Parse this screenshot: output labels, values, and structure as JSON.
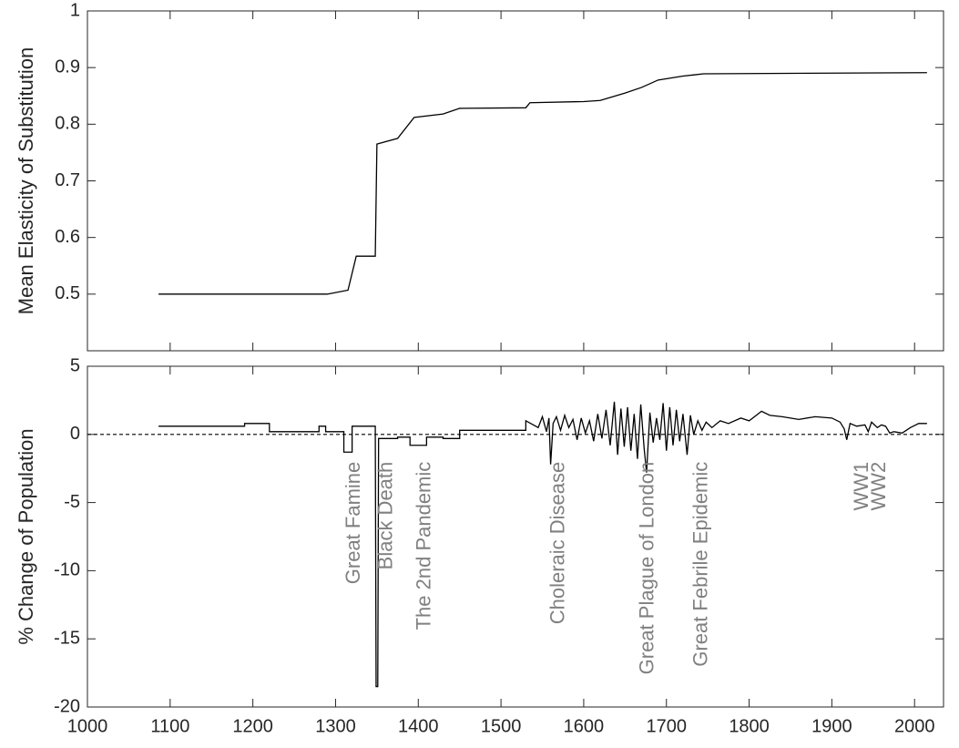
{
  "chart_data": [
    {
      "type": "line",
      "ylabel": "Mean Elasticity of Substitution",
      "xlim": [
        1000,
        2035
      ],
      "ylim": [
        0.4,
        1
      ],
      "xticks": [
        1000,
        1100,
        1200,
        1300,
        1400,
        1500,
        1600,
        1700,
        1800,
        1900,
        2000
      ],
      "xtick_labels": false,
      "yticks": [
        0.5,
        0.6,
        0.7,
        0.8,
        0.9,
        1
      ],
      "series": [
        {
          "color": "#000000",
          "x": [
            1086,
            1290,
            1315,
            1325,
            1348,
            1350,
            1375,
            1395,
            1430,
            1450,
            1530,
            1535,
            1600,
            1620,
            1650,
            1670,
            1690,
            1720,
            1745,
            2015
          ],
          "values": [
            0.5,
            0.5,
            0.507,
            0.567,
            0.567,
            0.765,
            0.775,
            0.812,
            0.818,
            0.828,
            0.829,
            0.838,
            0.84,
            0.842,
            0.855,
            0.865,
            0.878,
            0.885,
            0.889,
            0.891
          ]
        }
      ]
    },
    {
      "type": "line",
      "ylabel": "% Change of Population",
      "xlim": [
        1000,
        2035
      ],
      "ylim": [
        -20,
        5
      ],
      "xticks": [
        1000,
        1100,
        1200,
        1300,
        1400,
        1500,
        1600,
        1700,
        1800,
        1900,
        2000
      ],
      "xtick_labels": true,
      "yticks": [
        -20,
        -15,
        -10,
        -5,
        0,
        5
      ],
      "reference_line": 0,
      "series": [
        {
          "color": "#000000",
          "x": [
            1086,
            1190,
            1190,
            1220,
            1220,
            1280,
            1280,
            1288,
            1288,
            1310,
            1310,
            1320,
            1320,
            1348,
            1349,
            1351,
            1352,
            1375,
            1375,
            1390,
            1390,
            1410,
            1410,
            1430,
            1430,
            1450,
            1450,
            1530,
            1530,
            1545,
            1550,
            1555,
            1558,
            1560,
            1563,
            1567,
            1572,
            1577,
            1582,
            1587,
            1592,
            1597,
            1602,
            1607,
            1612,
            1617,
            1622,
            1627,
            1632,
            1637,
            1641,
            1645,
            1649,
            1653,
            1657,
            1661,
            1665,
            1669,
            1673,
            1676,
            1680,
            1684,
            1688,
            1692,
            1696,
            1700,
            1704,
            1708,
            1712,
            1716,
            1720,
            1725,
            1729,
            1733,
            1738,
            1743,
            1748,
            1755,
            1765,
            1775,
            1790,
            1800,
            1815,
            1825,
            1840,
            1860,
            1880,
            1900,
            1910,
            1915,
            1918,
            1922,
            1930,
            1940,
            1944,
            1948,
            1955,
            1960,
            1965,
            1970,
            1975,
            1985,
            1995,
            2005,
            2015
          ],
          "values": [
            0.6,
            0.6,
            0.8,
            0.8,
            0.2,
            0.2,
            0.6,
            0.6,
            0.2,
            0.2,
            -1.3,
            -1.3,
            0.6,
            0.6,
            -18.5,
            -18.5,
            -0.3,
            -0.3,
            -0.2,
            -0.2,
            -0.8,
            -0.8,
            -0.2,
            -0.2,
            -0.3,
            -0.3,
            0.3,
            0.3,
            1.0,
            0.5,
            1.3,
            0.2,
            1.2,
            -2.2,
            0.8,
            1.3,
            0.3,
            1.4,
            0.5,
            1.1,
            -0.4,
            1.2,
            0.1,
            1.0,
            -0.5,
            1.5,
            -0.3,
            1.8,
            -0.8,
            2.4,
            -1.5,
            1.9,
            -0.9,
            2.0,
            -1.2,
            1.5,
            -1.8,
            2.2,
            -1.0,
            -2.8,
            1.6,
            -0.6,
            1.2,
            -0.4,
            2.3,
            -1.2,
            2.0,
            -0.8,
            1.8,
            -0.5,
            1.5,
            -1.5,
            1.4,
            0.0,
            1.0,
            0.3,
            0.9,
            0.5,
            1.0,
            0.8,
            1.2,
            1.0,
            1.7,
            1.4,
            1.3,
            1.1,
            1.3,
            1.2,
            0.9,
            0.4,
            -0.4,
            0.8,
            0.6,
            0.7,
            0.2,
            0.9,
            0.5,
            0.7,
            0.6,
            0.1,
            0.2,
            0.1,
            0.5,
            0.8,
            0.8
          ]
        }
      ],
      "annotations": [
        {
          "text": "Great Famine",
          "x": 1323,
          "y": -2
        },
        {
          "text": "Black Death",
          "x": 1362,
          "y": -2
        },
        {
          "text": "The 2nd Pandemic",
          "x": 1408,
          "y": -2
        },
        {
          "text": "Choleraic Disease",
          "x": 1570,
          "y": -2
        },
        {
          "text": "Great Plague of London",
          "x": 1678,
          "y": -2
        },
        {
          "text": "Great Febrile Epidemic",
          "x": 1743,
          "y": -2
        },
        {
          "text": "WW1",
          "x": 1937,
          "y": -2
        },
        {
          "text": "WW2",
          "x": 1958,
          "y": -2
        }
      ]
    }
  ]
}
